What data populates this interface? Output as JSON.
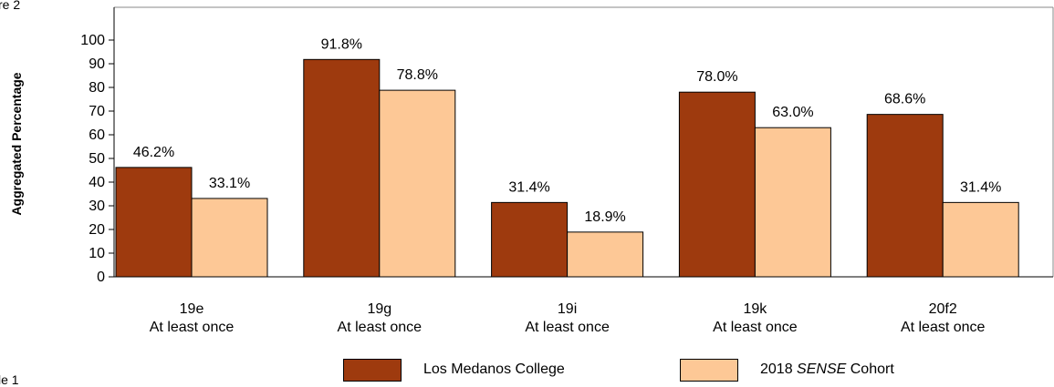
{
  "side_labels": {
    "top_left": "re 2",
    "bottom_left": "le 1"
  },
  "chart_data": {
    "type": "bar",
    "ylabel": "Aggregated Percentage",
    "ylim": [
      0,
      100
    ],
    "yticks": [
      0,
      10,
      20,
      30,
      40,
      50,
      60,
      70,
      80,
      90,
      100
    ],
    "categories": [
      [
        "19e",
        "At least once"
      ],
      [
        "19g",
        "At least once"
      ],
      [
        "19i",
        "At least once"
      ],
      [
        "19k",
        "At least once"
      ],
      [
        "20f2",
        "At least once"
      ]
    ],
    "series": [
      {
        "name": "Los Medanos College",
        "values": [
          46.2,
          91.8,
          31.4,
          78.0,
          68.6
        ],
        "labels": [
          "46.2%",
          "91.8%",
          "31.4%",
          "78.0%",
          "68.6%"
        ],
        "color": "#9e3a0e"
      },
      {
        "name": "2018 SENSE Cohort",
        "name_prefix": "2018 ",
        "name_italic": "SENSE",
        "name_suffix": " Cohort",
        "values": [
          33.1,
          78.8,
          18.9,
          63.0,
          31.4
        ],
        "labels": [
          "33.1%",
          "78.8%",
          "18.9%",
          "63.0%",
          "31.4%"
        ],
        "color": "#fdc896"
      }
    ],
    "grid": false,
    "legend_position": "bottom"
  }
}
